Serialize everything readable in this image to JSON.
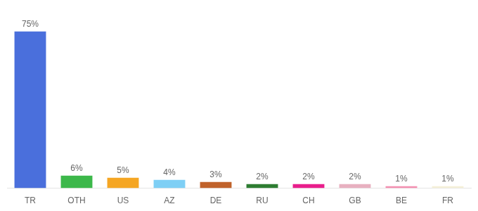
{
  "chart_data": {
    "type": "bar",
    "categories": [
      "TR",
      "OTH",
      "US",
      "AZ",
      "DE",
      "RU",
      "CH",
      "GB",
      "BE",
      "FR"
    ],
    "values": [
      75,
      6,
      5,
      4,
      3,
      2,
      2,
      2,
      1,
      1
    ],
    "value_labels": [
      "75%",
      "6%",
      "5%",
      "4%",
      "3%",
      "2%",
      "2%",
      "2%",
      "1%",
      "1%"
    ],
    "colors": [
      "#4a6fdc",
      "#3cb84a",
      "#f5a623",
      "#7ecff5",
      "#c0622b",
      "#2e7d32",
      "#e91e8c",
      "#e8b0c0",
      "#f48fb1",
      "#f5f0d8"
    ],
    "ylim": [
      0,
      82
    ],
    "grid": false,
    "data_labels": true,
    "tick_labels": "x"
  }
}
